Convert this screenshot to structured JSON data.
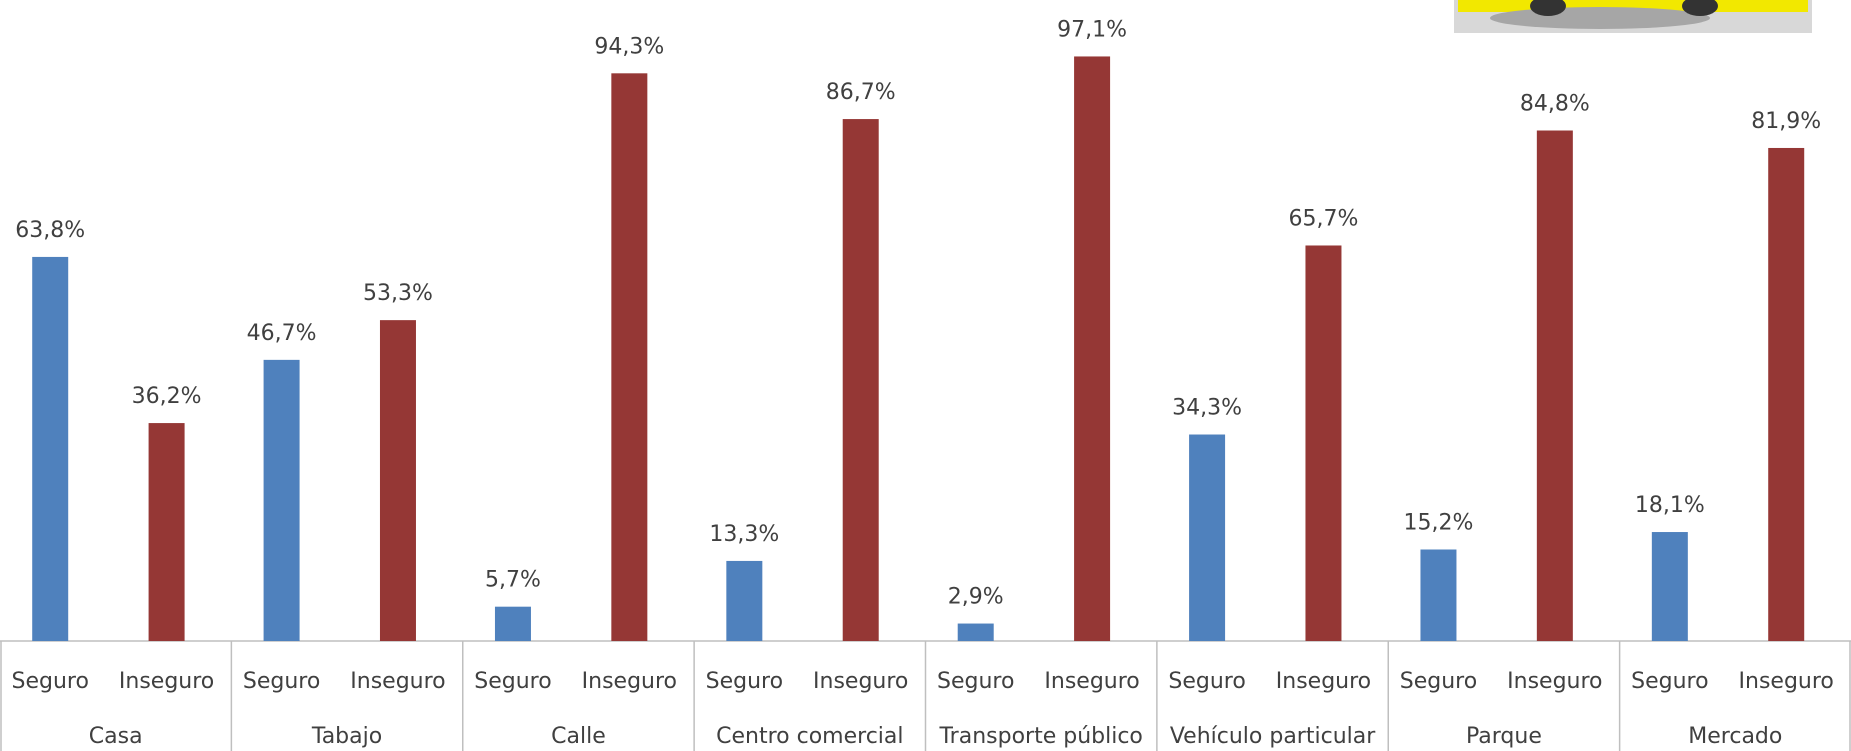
{
  "chart_data": {
    "type": "bar",
    "categories": [
      "Casa",
      "Tabajo",
      "Calle",
      "Centro comercial",
      "Transporte público",
      "Vehículo particular",
      "Parque",
      "Mercado"
    ],
    "series": [
      {
        "name": "Seguro",
        "color": "#4f81bd",
        "values": [
          63.8,
          46.7,
          5.7,
          13.3,
          2.9,
          34.3,
          15.2,
          18.1
        ],
        "value_labels": [
          "63,8%",
          "46,7%",
          "5,7%",
          "13,3%",
          "2,9%",
          "34,3%",
          "15,2%",
          "18,1%"
        ]
      },
      {
        "name": "Inseguro",
        "color": "#953735",
        "values": [
          36.2,
          53.3,
          94.3,
          86.7,
          97.1,
          65.7,
          84.8,
          81.9
        ],
        "value_labels": [
          "36,2%",
          "53,3%",
          "94,3%",
          "86,7%",
          "97,1%",
          "65,7%",
          "84,8%",
          "81,9%"
        ]
      }
    ],
    "ylim": [
      0,
      100
    ]
  }
}
